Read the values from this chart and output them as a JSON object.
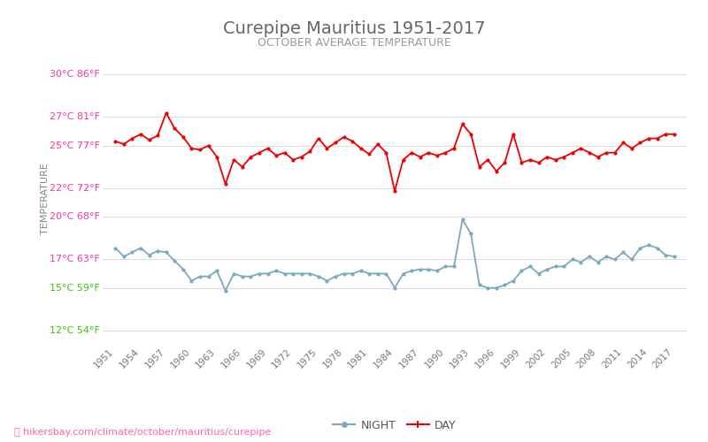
{
  "title": "Curepipe Mauritius 1951-2017",
  "subtitle": "OCTOBER AVERAGE TEMPERATURE",
  "ylabel": "TEMPERATURE",
  "xlabel_url": "hikersbay.com/climate/october/mauritius/curepipe",
  "yticks_celsius": [
    12,
    15,
    17,
    20,
    22,
    25,
    27,
    30
  ],
  "yticks_fahrenheit": [
    54,
    59,
    63,
    68,
    72,
    77,
    81,
    86
  ],
  "ytick_colors": [
    "#33cc00",
    "#33cc00",
    "#ff3399",
    "#ff3399",
    "#ff3399",
    "#ff3399",
    "#ff3399",
    "#ff3399"
  ],
  "ylim": [
    11.0,
    31.5
  ],
  "years": [
    1951,
    1952,
    1953,
    1954,
    1955,
    1956,
    1957,
    1958,
    1959,
    1960,
    1961,
    1962,
    1963,
    1964,
    1965,
    1966,
    1967,
    1968,
    1969,
    1970,
    1971,
    1972,
    1973,
    1974,
    1975,
    1976,
    1977,
    1978,
    1979,
    1980,
    1981,
    1982,
    1983,
    1984,
    1985,
    1986,
    1987,
    1988,
    1989,
    1990,
    1991,
    1992,
    1993,
    1994,
    1995,
    1996,
    1997,
    1998,
    1999,
    2000,
    2001,
    2002,
    2003,
    2004,
    2005,
    2006,
    2007,
    2008,
    2009,
    2010,
    2011,
    2012,
    2013,
    2014,
    2015,
    2016,
    2017
  ],
  "day_temps": [
    25.3,
    25.1,
    25.5,
    25.8,
    25.4,
    25.7,
    27.3,
    26.2,
    25.6,
    24.8,
    24.7,
    25.0,
    24.2,
    22.3,
    24.0,
    23.5,
    24.2,
    24.5,
    24.8,
    24.3,
    24.5,
    24.0,
    24.2,
    24.6,
    25.5,
    24.8,
    25.2,
    25.6,
    25.3,
    24.8,
    24.4,
    25.1,
    24.5,
    21.8,
    24.0,
    24.5,
    24.2,
    24.5,
    24.3,
    24.5,
    24.8,
    26.5,
    25.8,
    23.5,
    24.0,
    23.2,
    23.8,
    25.8,
    23.8,
    24.0,
    23.8,
    24.2,
    24.0,
    24.2,
    24.5,
    24.8,
    24.5,
    24.2,
    24.5,
    24.5,
    25.2,
    24.8,
    25.2,
    25.5,
    25.5,
    25.8,
    25.8
  ],
  "night_temps": [
    17.8,
    17.2,
    17.5,
    17.8,
    17.3,
    17.6,
    17.5,
    16.9,
    16.3,
    15.5,
    15.8,
    15.8,
    16.2,
    14.8,
    16.0,
    15.8,
    15.8,
    16.0,
    16.0,
    16.2,
    16.0,
    16.0,
    16.0,
    16.0,
    15.8,
    15.5,
    15.8,
    16.0,
    16.0,
    16.2,
    16.0,
    16.0,
    16.0,
    15.0,
    16.0,
    16.2,
    16.3,
    16.3,
    16.2,
    16.5,
    16.5,
    19.8,
    18.8,
    15.2,
    15.0,
    15.0,
    15.2,
    15.5,
    16.2,
    16.5,
    16.0,
    16.3,
    16.5,
    16.5,
    17.0,
    16.8,
    17.2,
    16.8,
    17.2,
    17.0,
    17.5,
    17.0,
    17.8,
    18.0,
    17.8,
    17.3,
    17.2
  ],
  "day_color": "#ee0000",
  "night_color": "#7aaabb",
  "marker_size": 3,
  "line_width": 1.3,
  "title_color": "#666666",
  "subtitle_color": "#999999",
  "ylabel_color": "#888888",
  "grid_color": "#dddddd",
  "background_color": "#ffffff",
  "xtick_years": [
    1951,
    1954,
    1957,
    1960,
    1963,
    1966,
    1969,
    1972,
    1975,
    1978,
    1981,
    1984,
    1987,
    1990,
    1993,
    1996,
    1999,
    2002,
    2005,
    2008,
    2011,
    2014,
    2017
  ],
  "legend_night_label": "NIGHT",
  "legend_day_label": "DAY",
  "xlim_left": 1949.5,
  "xlim_right": 2018.5
}
